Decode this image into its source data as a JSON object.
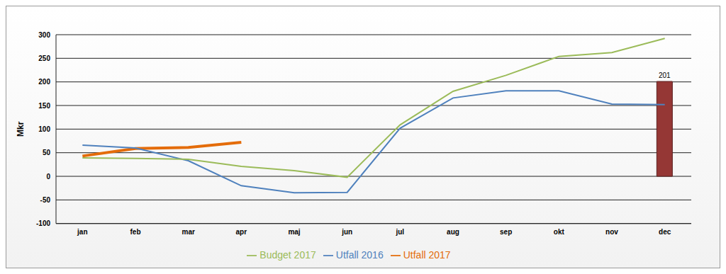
{
  "chart_data": {
    "type": "line",
    "y_label": "Mkr",
    "categories": [
      "jan",
      "feb",
      "mar",
      "apr",
      "maj",
      "jun",
      "jul",
      "aug",
      "sep",
      "okt",
      "nov",
      "dec"
    ],
    "ylim": [
      -100,
      300
    ],
    "yticks": [
      -100,
      -50,
      0,
      50,
      100,
      150,
      200,
      250,
      300
    ],
    "grid": true,
    "legend": "bottom",
    "series": [
      {
        "name": "Utfall 2017",
        "color": "#e46c0a",
        "values": [
          43,
          59,
          61,
          72,
          null,
          null,
          null,
          null,
          null,
          null,
          null,
          null
        ]
      },
      {
        "name": "Utfall 2016",
        "color": "#4f81bd",
        "values": [
          66,
          60,
          33,
          -20,
          -35,
          -34,
          102,
          166,
          181,
          181,
          153,
          152
        ]
      },
      {
        "name": "Budget 2017",
        "color": "#9bbb59",
        "values": [
          39,
          38,
          36,
          21,
          12,
          -2,
          109,
          180,
          214,
          254,
          262,
          292
        ]
      },
      {
        "type": "bar",
        "color": "#953735",
        "data_labels": true,
        "values": [
          null,
          null,
          null,
          null,
          null,
          null,
          null,
          null,
          null,
          null,
          null,
          201
        ]
      }
    ]
  }
}
